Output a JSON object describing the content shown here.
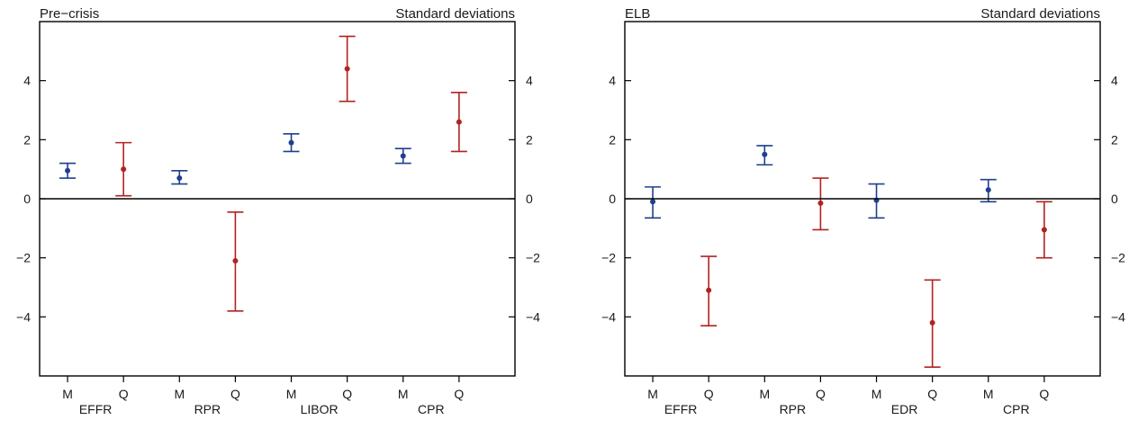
{
  "colors": {
    "monthly": "#1f3f8f",
    "quarterly": "#b22222"
  },
  "chart_data": [
    {
      "type": "errorbar",
      "title": "Pre−crisis",
      "right_title": "Standard deviations",
      "ylim": [
        -6,
        6
      ],
      "yticks": [
        -4,
        -2,
        0,
        2,
        4
      ],
      "ytick_labels": [
        "−4",
        "−2",
        "0",
        "2",
        "4"
      ],
      "groups": [
        "EFFR",
        "RPR",
        "LIBOR",
        "CPR"
      ],
      "series_labels": [
        "M",
        "Q"
      ],
      "points": [
        {
          "group": "EFFR",
          "series": "M",
          "value": 0.95,
          "low": 0.7,
          "high": 1.2
        },
        {
          "group": "EFFR",
          "series": "Q",
          "value": 1.0,
          "low": 0.1,
          "high": 1.9
        },
        {
          "group": "RPR",
          "series": "M",
          "value": 0.7,
          "low": 0.5,
          "high": 0.95
        },
        {
          "group": "RPR",
          "series": "Q",
          "value": -2.1,
          "low": -3.8,
          "high": -0.45
        },
        {
          "group": "LIBOR",
          "series": "M",
          "value": 1.9,
          "low": 1.6,
          "high": 2.2
        },
        {
          "group": "LIBOR",
          "series": "Q",
          "value": 4.4,
          "low": 3.3,
          "high": 5.5
        },
        {
          "group": "CPR",
          "series": "M",
          "value": 1.45,
          "low": 1.2,
          "high": 1.7
        },
        {
          "group": "CPR",
          "series": "Q",
          "value": 2.6,
          "low": 1.6,
          "high": 3.6
        }
      ]
    },
    {
      "type": "errorbar",
      "title": "ELB",
      "right_title": "Standard deviations",
      "ylim": [
        -6,
        6
      ],
      "yticks": [
        -4,
        -2,
        0,
        2,
        4
      ],
      "ytick_labels": [
        "−4",
        "−2",
        "0",
        "2",
        "4"
      ],
      "groups": [
        "EFFR",
        "RPR",
        "EDR",
        "CPR"
      ],
      "series_labels": [
        "M",
        "Q"
      ],
      "points": [
        {
          "group": "EFFR",
          "series": "M",
          "value": -0.1,
          "low": -0.65,
          "high": 0.4
        },
        {
          "group": "EFFR",
          "series": "Q",
          "value": -3.1,
          "low": -4.3,
          "high": -1.95
        },
        {
          "group": "RPR",
          "series": "M",
          "value": 1.5,
          "low": 1.15,
          "high": 1.8
        },
        {
          "group": "RPR",
          "series": "Q",
          "value": -0.15,
          "low": -1.05,
          "high": 0.7
        },
        {
          "group": "EDR",
          "series": "M",
          "value": -0.05,
          "low": -0.65,
          "high": 0.5
        },
        {
          "group": "EDR",
          "series": "Q",
          "value": -4.2,
          "low": -5.7,
          "high": -2.75
        },
        {
          "group": "CPR",
          "series": "M",
          "value": 0.3,
          "low": -0.1,
          "high": 0.65
        },
        {
          "group": "CPR",
          "series": "Q",
          "value": -1.05,
          "low": -2.0,
          "high": -0.1
        }
      ]
    }
  ]
}
